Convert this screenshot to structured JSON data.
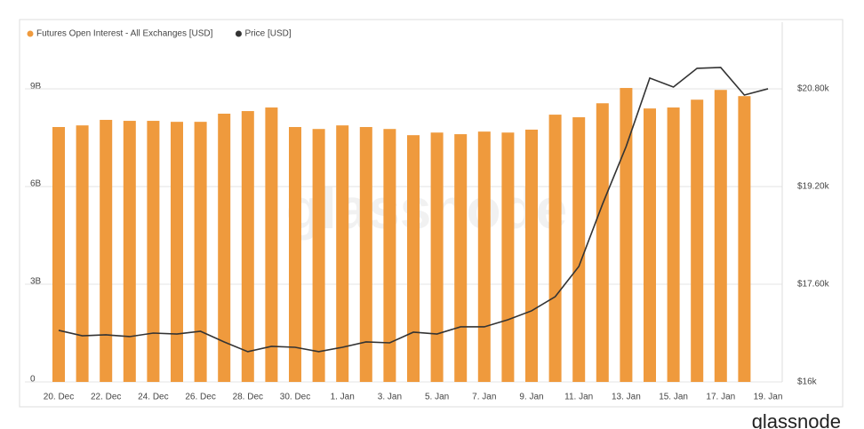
{
  "chart_data": {
    "type": "bar",
    "categories": [
      "20. Dec",
      null,
      "22. Dec",
      null,
      "24. Dec",
      null,
      "26. Dec",
      null,
      "28. Dec",
      null,
      "30. Dec",
      null,
      "1. Jan",
      null,
      "3. Jan",
      null,
      "5. Jan",
      null,
      "7. Jan",
      null,
      "9. Jan",
      null,
      "11. Jan",
      null,
      "13. Jan",
      null,
      "15. Jan",
      null,
      "17. Jan",
      null,
      "19. Jan"
    ],
    "series": [
      {
        "name": "Futures Open Interest - All Exchanges [USD]",
        "color": "#ef9a3d",
        "type": "bar",
        "values": [
          7.83,
          7.88,
          8.05,
          8.02,
          8.02,
          7.99,
          7.99,
          8.24,
          8.32,
          8.43,
          7.83,
          7.77,
          7.88,
          7.83,
          7.77,
          7.58,
          7.66,
          7.61,
          7.69,
          7.66,
          7.75,
          8.21,
          8.13,
          8.56,
          9.03,
          8.4,
          8.43,
          8.67,
          8.97,
          8.78,
          null
        ]
      },
      {
        "name": "Price [USD]",
        "color": "#333333",
        "type": "line",
        "axis": "y2",
        "values": [
          16844,
          16756,
          16771,
          16742,
          16800,
          16785,
          16829,
          16655,
          16495,
          16582,
          16567,
          16495,
          16567,
          16655,
          16640,
          16815,
          16785,
          16902,
          16902,
          17018,
          17164,
          17396,
          17891,
          18909,
          19855,
          20975,
          20829,
          21135,
          21149,
          20698,
          20800
        ]
      }
    ],
    "ylim": [
      0,
      11.05
    ],
    "yticks": [
      0,
      {
        "value": 3,
        "label": "3B"
      },
      {
        "value": 6,
        "label": "6B"
      },
      {
        "value": 9,
        "label": "9B"
      }
    ],
    "y2lim": [
      16000,
      21890
    ],
    "y2ticks": [
      {
        "value": 16000,
        "label": "$16k"
      },
      {
        "value": 17600,
        "label": "$17.60k"
      },
      {
        "value": 19200,
        "label": "$19.20k"
      },
      {
        "value": 20800,
        "label": "$20.80k"
      }
    ],
    "grid": true,
    "legend": "top-left",
    "watermark": "glassnode",
    "logo": "glassnode"
  }
}
